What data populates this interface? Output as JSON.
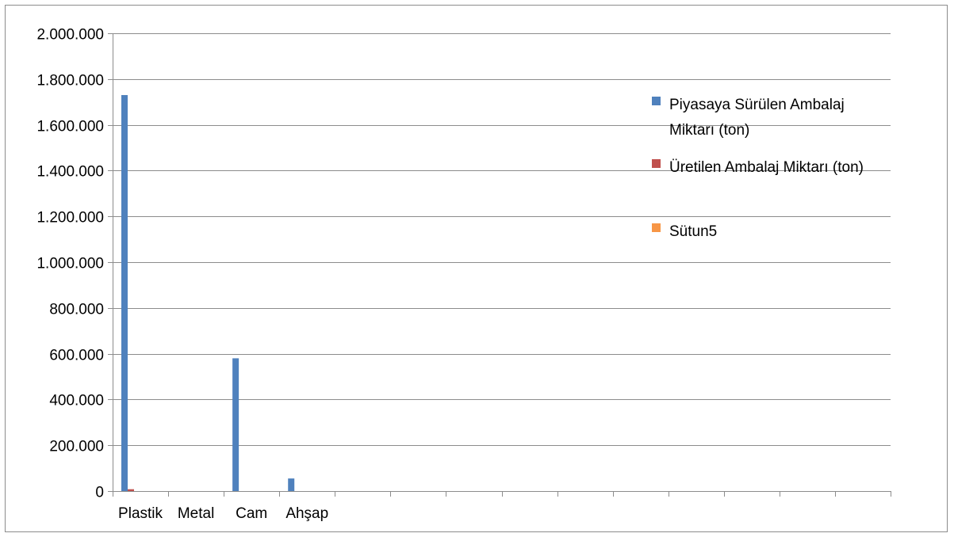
{
  "chart_data": {
    "type": "bar",
    "title": "",
    "xlabel": "",
    "ylabel": "",
    "categories": [
      "Plastik",
      "Metal",
      "Cam",
      "Ahşap",
      "",
      "",
      "",
      "",
      "",
      "",
      "",
      "",
      "",
      ""
    ],
    "series": [
      {
        "name": "Piyasaya Sürülen Ambalaj Miktarı (ton)",
        "color": "#4f81bd",
        "values": [
          1730000,
          0,
          580000,
          55000,
          0,
          0,
          0,
          0,
          0,
          0,
          0,
          0,
          0,
          0
        ]
      },
      {
        "name": "Üretilen Ambalaj Miktarı (ton)",
        "color": "#c0504d",
        "values": [
          8000,
          0,
          0,
          0,
          0,
          0,
          0,
          0,
          0,
          0,
          0,
          0,
          0,
          0
        ]
      },
      {
        "name": "Sütun5",
        "color": "#f79646",
        "values": [
          0,
          0,
          0,
          0,
          0,
          0,
          0,
          0,
          0,
          0,
          0,
          0,
          0,
          0
        ]
      }
    ],
    "ylim": [
      0,
      2000000
    ],
    "yticks": [
      "0",
      "200.000",
      "400.000",
      "600.000",
      "800.000",
      "1.000.000",
      "1.200.000",
      "1.400.000",
      "1.600.000",
      "1.800.000",
      "2.000.000"
    ],
    "ytick_values": [
      0,
      200000,
      400000,
      600000,
      800000,
      1000000,
      1200000,
      1400000,
      1600000,
      1800000,
      2000000
    ],
    "grid": true,
    "legend_position": "right"
  }
}
